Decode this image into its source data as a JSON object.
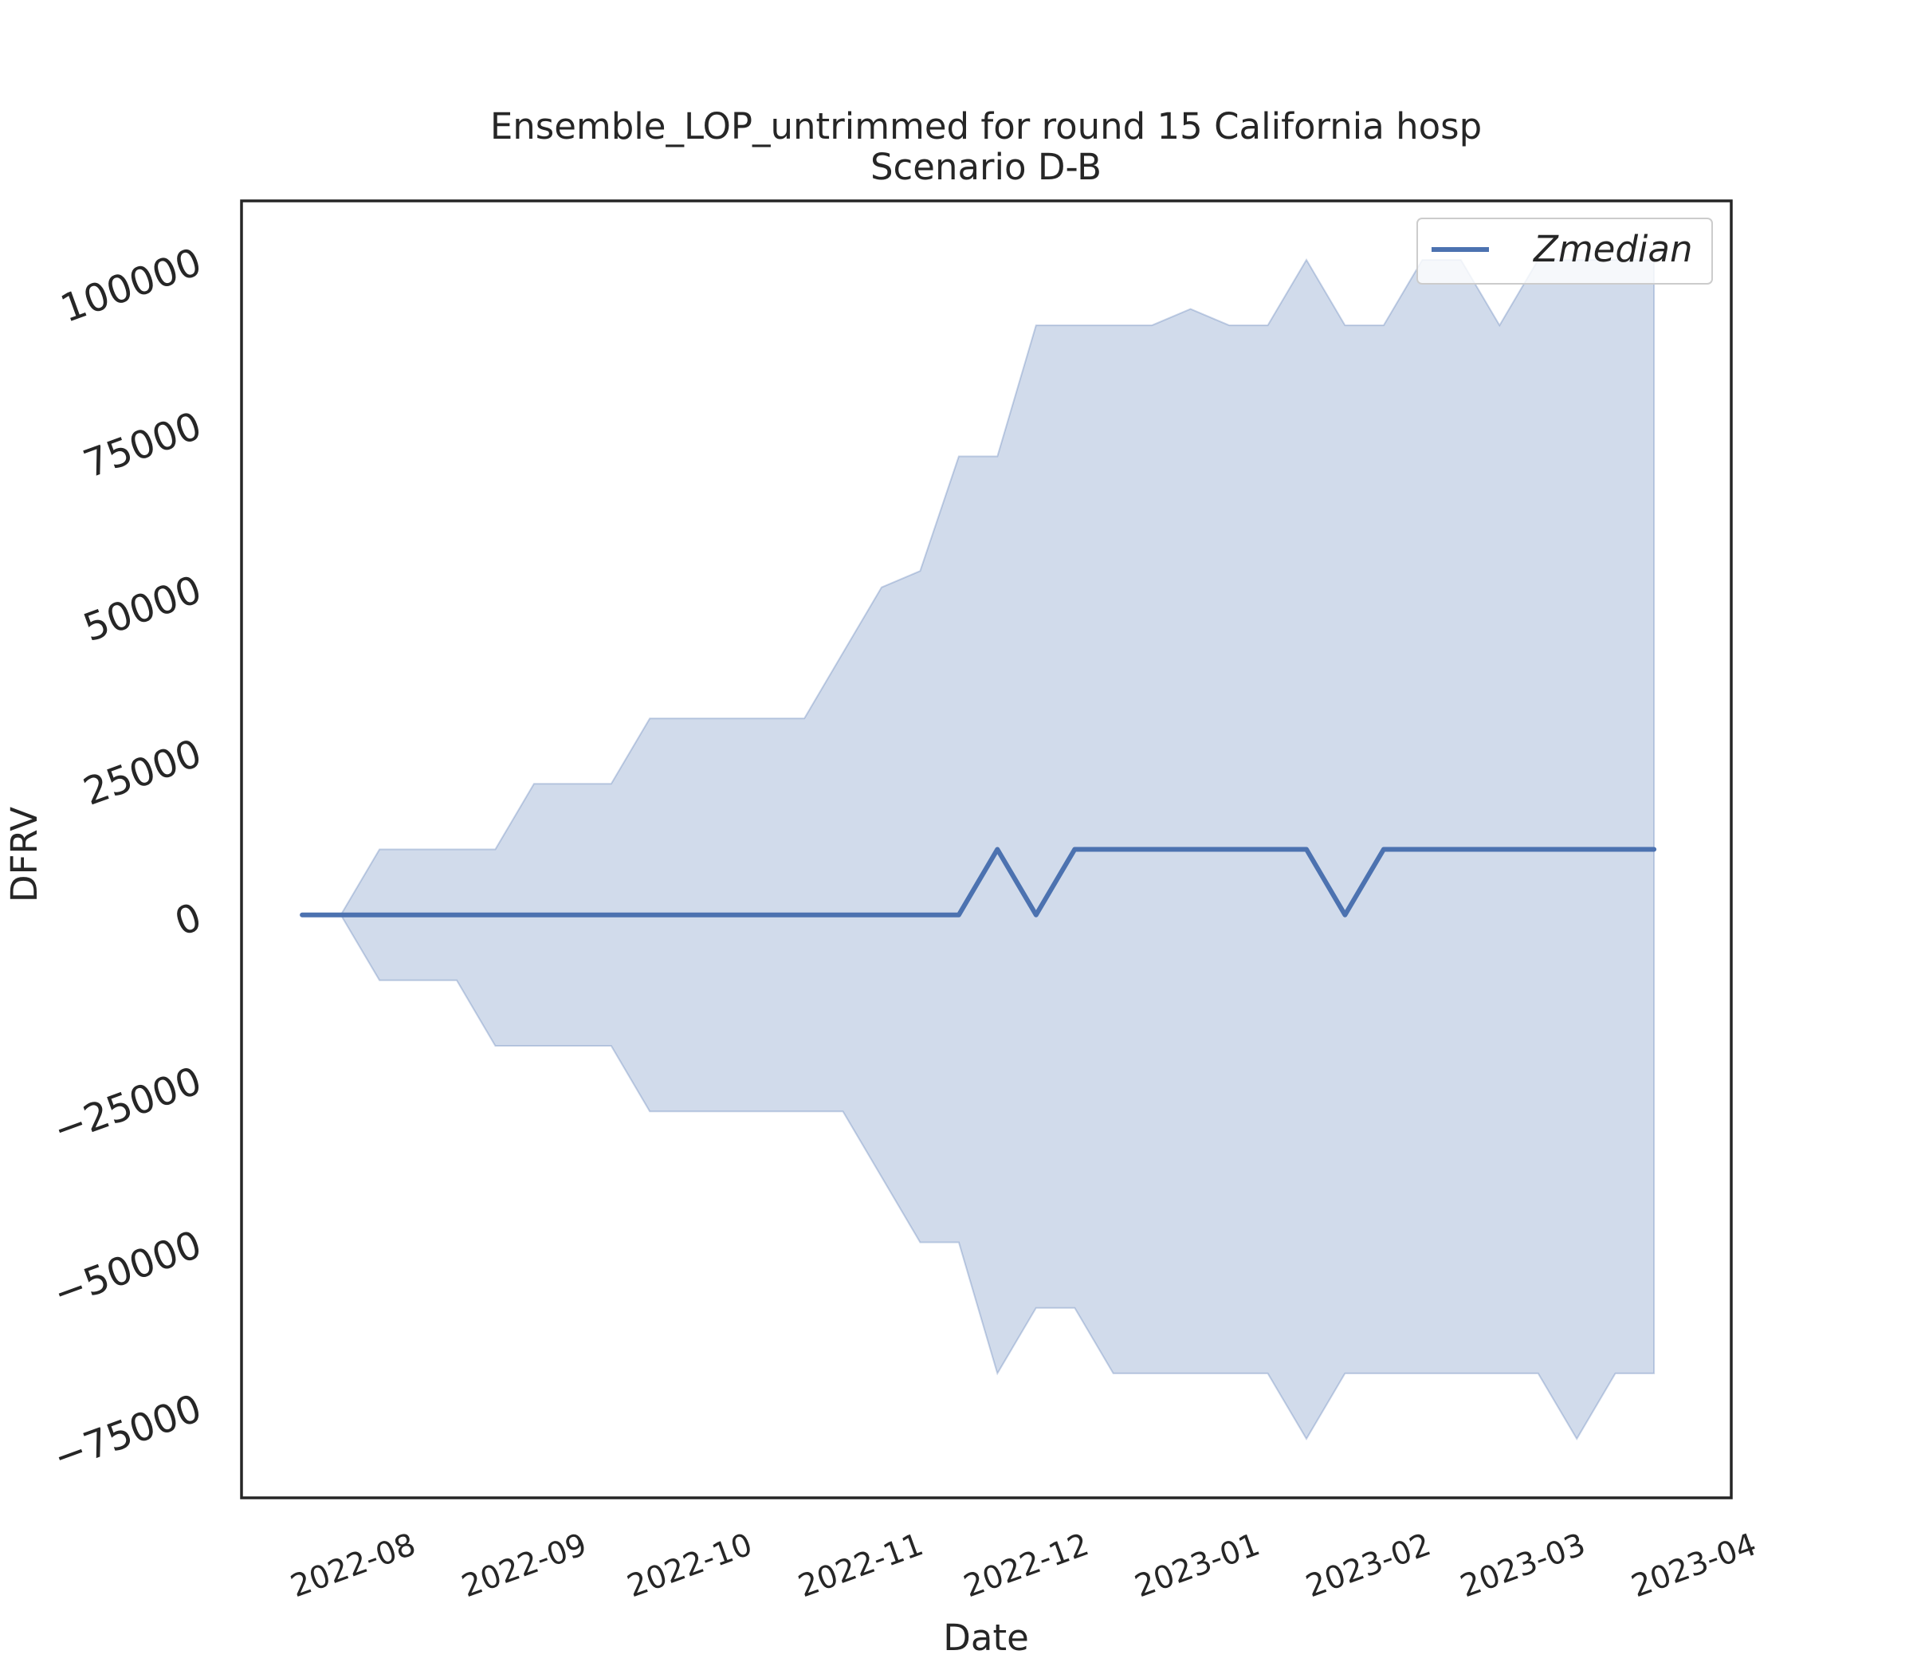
{
  "chart_data": {
    "type": "area",
    "title": "Ensemble_LOP_untrimmed for round 15 California hosp",
    "subtitle": "Scenario D-B",
    "xlabel": "Date",
    "ylabel": "DFRV",
    "x_ticks": [
      "2022-08",
      "2022-09",
      "2022-10",
      "2022-11",
      "2022-12",
      "2023-01",
      "2023-02",
      "2023-03",
      "2023-04"
    ],
    "y_ticks": [
      "−75000",
      "−50000",
      "−25000",
      "0",
      "25000",
      "50000",
      "75000",
      "100000"
    ],
    "y_tick_values": [
      -75000,
      -50000,
      -25000,
      0,
      25000,
      50000,
      75000,
      100000
    ],
    "xlim": [
      "2022-07-12",
      "2023-04-08"
    ],
    "ylim": [
      -89000,
      109000
    ],
    "grid": false,
    "legend_position": "top-right",
    "line_color": "#4c72b0",
    "band_color": "#4c72b0",
    "x": [
      "2022-07-23",
      "2022-07-30",
      "2022-08-06",
      "2022-08-13",
      "2022-08-20",
      "2022-08-27",
      "2022-09-03",
      "2022-09-10",
      "2022-09-17",
      "2022-09-24",
      "2022-10-01",
      "2022-10-08",
      "2022-10-15",
      "2022-10-22",
      "2022-10-29",
      "2022-11-05",
      "2022-11-12",
      "2022-11-19",
      "2022-11-26",
      "2022-12-03",
      "2022-12-10",
      "2022-12-17",
      "2022-12-24",
      "2022-12-31",
      "2023-01-07",
      "2023-01-14",
      "2023-01-21",
      "2023-01-28",
      "2023-02-04",
      "2023-02-11",
      "2023-02-18",
      "2023-02-25",
      "2023-03-04",
      "2023-03-11",
      "2023-03-18",
      "2023-03-25"
    ],
    "series": [
      {
        "name": "Zmedian",
        "values": [
          0,
          0,
          0,
          0,
          0,
          0,
          0,
          0,
          0,
          0,
          0,
          0,
          0,
          0,
          0,
          0,
          0,
          0,
          10000,
          0,
          10000,
          10000,
          10000,
          10000,
          10000,
          10000,
          10000,
          0,
          10000,
          10000,
          10000,
          10000,
          10000,
          10000,
          10000,
          10000
        ]
      }
    ],
    "band": {
      "upper": [
        0,
        0,
        10000,
        10000,
        10000,
        10000,
        20000,
        20000,
        20000,
        30000,
        30000,
        30000,
        30000,
        30000,
        40000,
        50000,
        52500,
        70000,
        70000,
        90000,
        90000,
        90000,
        90000,
        92500,
        90000,
        90000,
        100000,
        90000,
        90000,
        100000,
        100000,
        90000,
        100000,
        100000,
        100000,
        100000
      ],
      "lower": [
        0,
        0,
        -10000,
        -10000,
        -10000,
        -20000,
        -20000,
        -20000,
        -20000,
        -30000,
        -30000,
        -30000,
        -30000,
        -30000,
        -30000,
        -40000,
        -50000,
        -50000,
        -70000,
        -60000,
        -60000,
        -70000,
        -70000,
        -70000,
        -70000,
        -70000,
        -80000,
        -70000,
        -70000,
        -70000,
        -70000,
        -70000,
        -70000,
        -80000,
        -70000,
        -70000
      ]
    }
  }
}
